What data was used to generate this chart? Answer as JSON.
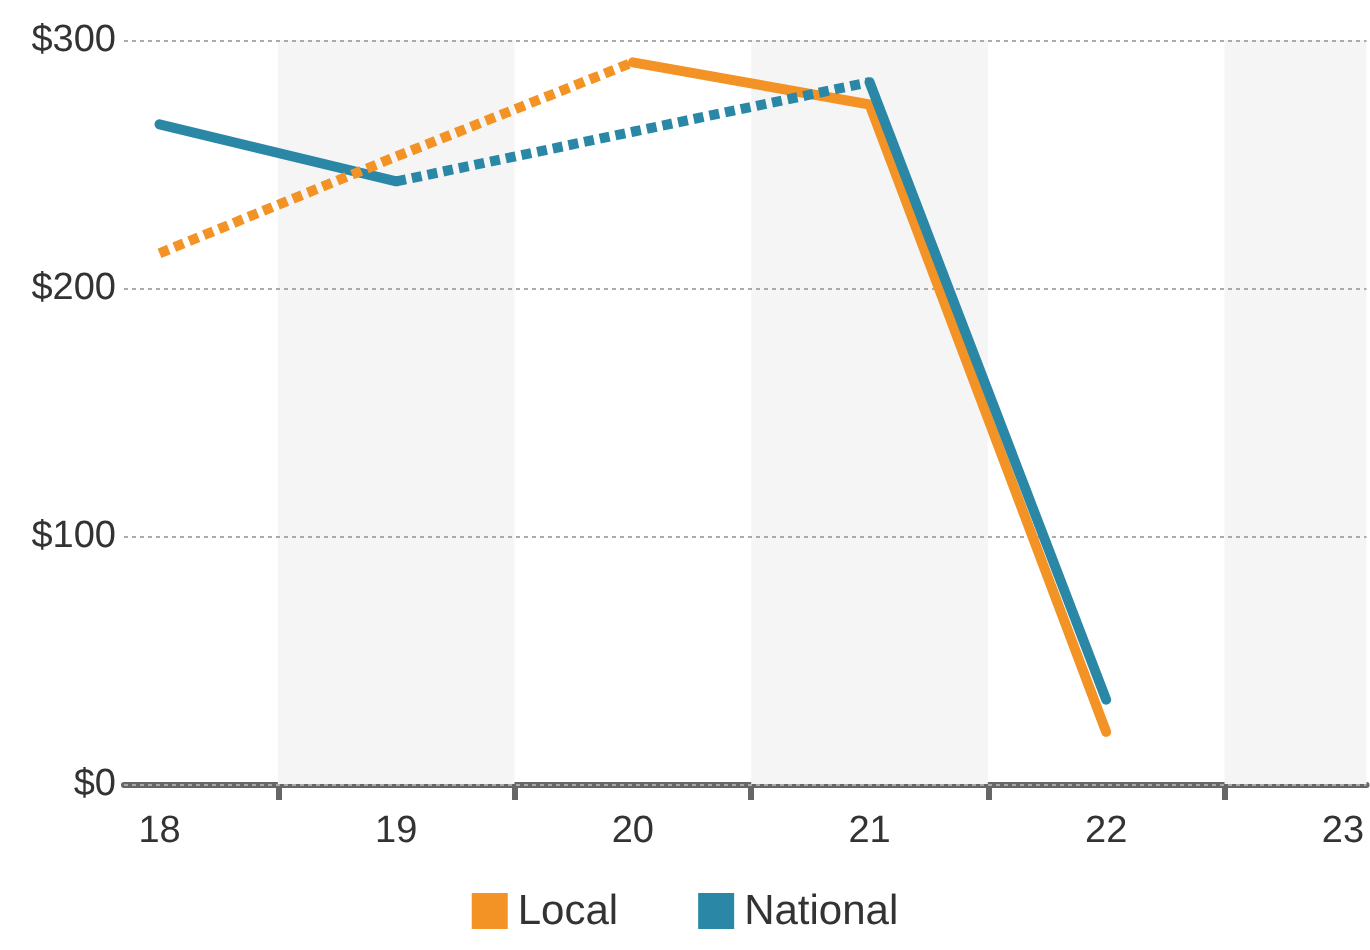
{
  "chart_data": {
    "type": "line",
    "xlim": [
      17.85,
      23.1
    ],
    "xticks": [
      18,
      {
        "value": 18.5,
        "label": null
      },
      19,
      {
        "value": 19.5,
        "label": null
      },
      20,
      {
        "value": 20.5,
        "label": null
      },
      21,
      {
        "value": 21.5,
        "label": null
      },
      22,
      {
        "value": 22.5,
        "label": null
      },
      23
    ],
    "ylim": [
      0,
      300
    ],
    "yticks": [
      {
        "value": 0,
        "label": "$0"
      },
      {
        "value": 100,
        "label": "$100"
      },
      {
        "value": 200,
        "label": "$200"
      },
      {
        "value": 300,
        "label": "$300"
      }
    ],
    "grid": "y",
    "legend": "bottom",
    "marker": "none",
    "bands": [
      {
        "axis": "x",
        "from": 18.5,
        "to": 19.5,
        "color": "#f5f5f5"
      },
      {
        "axis": "x",
        "from": 20.5,
        "to": 21.5,
        "color": "#f5f5f5"
      },
      {
        "axis": "x",
        "from": 22.5,
        "to": 23.1,
        "color": "#f5f5f5"
      }
    ],
    "series": [
      {
        "name": "Local",
        "color": "#f39325",
        "line_style": "solid",
        "x": [
          20,
          21,
          22
        ],
        "values": [
          291,
          274,
          21
        ]
      },
      {
        "name": "National",
        "color": "#2a87a6",
        "line_style": "solid",
        "x": [
          18,
          19
        ],
        "values": [
          266,
          243
        ]
      },
      {
        "color": "#2a87a6",
        "line_style": "solid",
        "x": [
          21,
          22
        ],
        "values": [
          283,
          34
        ]
      },
      {
        "color": "#f39325",
        "line_style": "dotted",
        "x": [
          18,
          19,
          20
        ],
        "values": [
          214,
          253,
          291
        ]
      },
      {
        "color": "#2a87a6",
        "line_style": "dotted",
        "x": [
          19,
          20,
          21
        ],
        "values": [
          243,
          263,
          283
        ]
      }
    ]
  }
}
